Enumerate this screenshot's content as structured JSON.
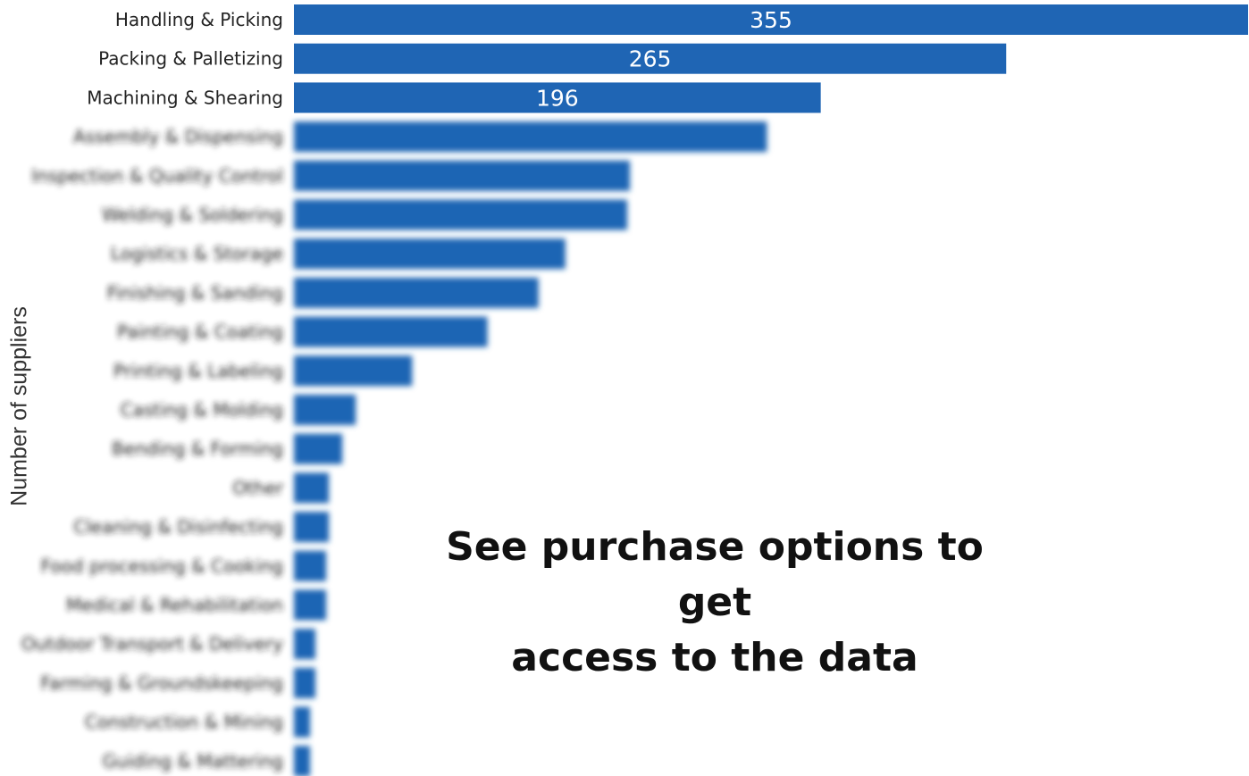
{
  "chart_data": {
    "type": "bar",
    "orientation": "horizontal",
    "ylabel": "Number of suppliers",
    "xlabel": "",
    "title": "",
    "bar_color": "#1f65b4",
    "label_color": "#222222",
    "value_label_color": "#ffffff",
    "xlim": [
      0,
      355
    ],
    "grid": false,
    "categories": [
      "Handling & Picking",
      "Packing & Palletizing",
      "Machining & Shearing",
      "Assembly & Dispensing",
      "Inspection & Quality Control",
      "Welding & Soldering",
      "Logistics & Storage",
      "Finishing & Sanding",
      "Painting & Coating",
      "Printing & Labeling",
      "Casting & Molding",
      "Bending & Forming",
      "Other",
      "Cleaning & Disinfecting",
      "Food processing & Cooking",
      "Medical & Rehabilitation",
      "Outdoor Transport & Delivery",
      "Farming & Groundskeeping",
      "Construction & Mining",
      "Guiding & Mattering"
    ],
    "values": [
      355,
      265,
      196,
      176,
      125,
      124,
      101,
      91,
      72,
      44,
      23,
      18,
      13,
      13,
      12,
      12,
      8,
      8,
      6,
      6
    ],
    "value_labels": [
      "355",
      "265",
      "196",
      "",
      "",
      "",
      "",
      "",
      "",
      "",
      "",
      "",
      "",
      "",
      "",
      "",
      "",
      "",
      "",
      ""
    ],
    "blurred_from_index": 3
  },
  "overlay": {
    "line1": "See purchase options to get",
    "line2": "access to the data"
  }
}
